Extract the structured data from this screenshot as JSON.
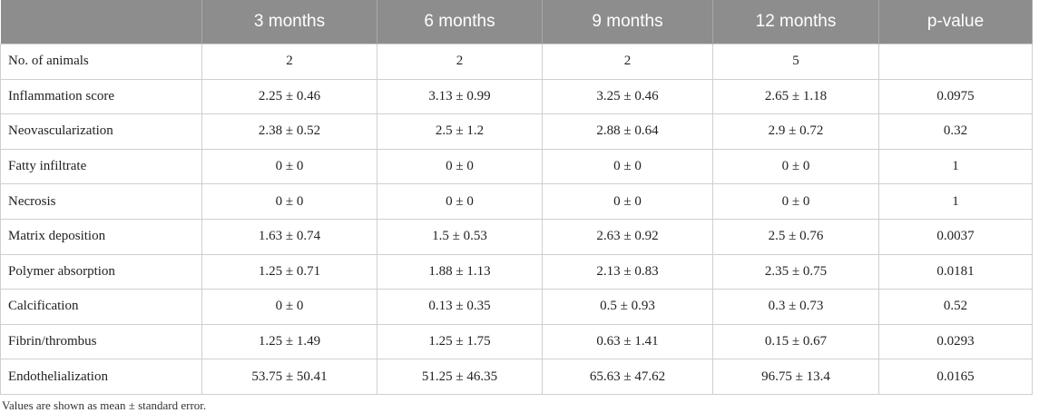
{
  "table": {
    "header": [
      "3 months",
      "6 months",
      "9 months",
      "12 months",
      "p-value"
    ],
    "rows": [
      [
        "No. of animals",
        "2",
        "2",
        "2",
        "5",
        null
      ],
      [
        "Inflammation score",
        "2.25 ± 0.46",
        "3.13 ± 0.99",
        "3.25 ± 0.46",
        "2.65 ± 1.18",
        "0.0975"
      ],
      [
        "Neovascularization",
        "2.38 ± 0.52",
        "2.5 ± 1.2",
        "2.88 ± 0.64",
        "2.9 ± 0.72",
        "0.32"
      ],
      [
        "Fatty infiltrate",
        "0 ± 0",
        "0 ± 0",
        "0 ± 0",
        "0 ± 0",
        "1"
      ],
      [
        "Necrosis",
        "0 ± 0",
        "0 ± 0",
        "0 ± 0",
        "0 ± 0",
        "1"
      ],
      [
        "Matrix deposition",
        "1.63 ± 0.74",
        "1.5 ± 0.53",
        "2.63 ± 0.92",
        "2.5 ± 0.76",
        "0.0037"
      ],
      [
        "Polymer absorption",
        "1.25 ± 0.71",
        "1.88 ± 1.13",
        "2.13 ± 0.83",
        "2.35 ± 0.75",
        "0.0181"
      ],
      [
        "Calcification",
        "0 ± 0",
        "0.13 ± 0.35",
        "0.5 ± 0.93",
        "0.3 ± 0.73",
        "0.52"
      ],
      [
        "Fibrin/thrombus",
        "1.25 ± 1.49",
        "1.25 ± 1.75",
        "0.63 ± 1.41",
        "0.15 ± 0.67",
        "0.0293"
      ],
      [
        "Endothelialization",
        "53.75 ± 50.41",
        "51.25 ± 46.35",
        "65.63 ± 47.62",
        "96.75 ± 13.4",
        "0.0165"
      ]
    ],
    "footnote": "Values are shown as mean ± standard error."
  }
}
